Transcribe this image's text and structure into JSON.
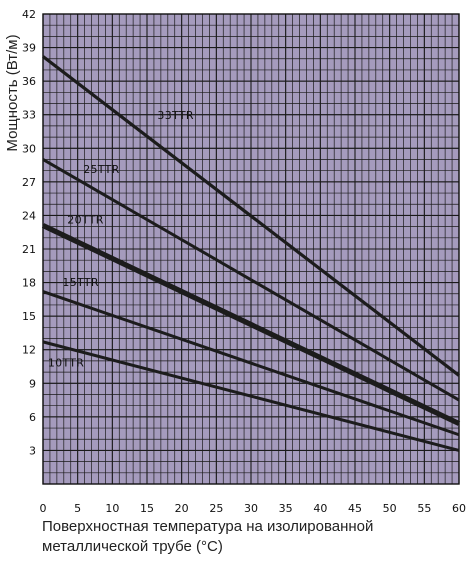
{
  "chart_data": {
    "type": "line",
    "title": "",
    "ylabel": "Мощность (Вт/м)",
    "xlabel_lines": [
      "Поверхностная температура на изолированной",
      "металлической трубе (°C)"
    ],
    "xlim": [
      0,
      60
    ],
    "ylim": [
      0,
      42
    ],
    "x_ticks": [
      0,
      5,
      10,
      15,
      20,
      25,
      30,
      35,
      40,
      45,
      50,
      55,
      60
    ],
    "y_ticks": [
      3,
      6,
      9,
      12,
      15,
      18,
      21,
      24,
      27,
      30,
      33,
      36,
      39,
      42
    ],
    "x_tick_labels": [
      "0",
      "5",
      "10",
      "15",
      "20",
      "25",
      "30",
      "35",
      "40",
      "45",
      "50",
      "55",
      "60"
    ],
    "y_tick_labels": [
      "3",
      "6",
      "9",
      "12",
      "15",
      "18",
      "21",
      "24",
      "27",
      "30",
      "33",
      "36",
      "39",
      "42"
    ],
    "grid": true,
    "grid_minor_step_x": 1,
    "grid_minor_step_y": 1,
    "plot_background": "#a59bbd",
    "grid_color": "#1a1a1a",
    "line_color": "#1c1c1c",
    "series": [
      {
        "name": "33TTR",
        "x": [
          0,
          60
        ],
        "y": [
          38.2,
          9.7
        ],
        "label_x": 16.5,
        "label_y": 32.6
      },
      {
        "name": "25TTR",
        "x": [
          0,
          60
        ],
        "y": [
          29.0,
          7.5
        ],
        "label_x": 5.8,
        "label_y": 27.8
      },
      {
        "name": "20TTR",
        "x": [
          0,
          60
        ],
        "y": [
          23.1,
          5.4
        ],
        "label_x": 3.5,
        "label_y": 23.3
      },
      {
        "name": "15TTR",
        "x": [
          0,
          60
        ],
        "y": [
          17.2,
          4.4
        ],
        "label_x": 2.8,
        "label_y": 17.7
      },
      {
        "name": "10TTR",
        "x": [
          0,
          60
        ],
        "y": [
          12.7,
          3.0
        ],
        "label_x": 0.7,
        "label_y": 10.5
      }
    ]
  }
}
